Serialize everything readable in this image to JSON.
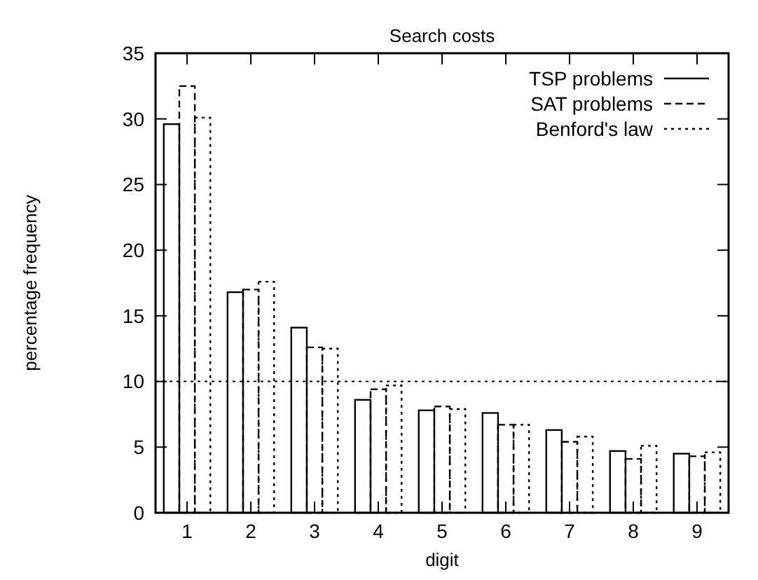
{
  "chart_data": {
    "type": "bar",
    "title": "Search costs",
    "xlabel": "digit",
    "ylabel": "percentage frequency",
    "categories": [
      "1",
      "2",
      "3",
      "4",
      "5",
      "6",
      "7",
      "8",
      "9"
    ],
    "series": [
      {
        "name": "TSP problems",
        "color": "#000000",
        "line_style": "solid",
        "values": [
          29.6,
          16.8,
          14.1,
          8.6,
          7.8,
          7.6,
          6.3,
          4.7,
          4.5
        ]
      },
      {
        "name": "SAT problems",
        "color": "#000000",
        "line_style": "dashed",
        "values": [
          32.5,
          17.0,
          12.6,
          9.4,
          8.1,
          6.7,
          5.4,
          4.1,
          4.3
        ]
      },
      {
        "name": "Benford's law",
        "color": "#000000",
        "line_style": "dotted",
        "values": [
          30.1,
          17.6,
          12.5,
          9.7,
          7.9,
          6.7,
          5.8,
          5.1,
          4.6
        ]
      }
    ],
    "ylim": [
      0,
      35
    ],
    "yticks": [
      0,
      5,
      10,
      15,
      20,
      25,
      30,
      35
    ],
    "ref_lines": [
      {
        "axis": "y",
        "value": 10,
        "color": "#000000",
        "line_style": "dotted"
      }
    ],
    "legend": "top right",
    "grid": false
  }
}
